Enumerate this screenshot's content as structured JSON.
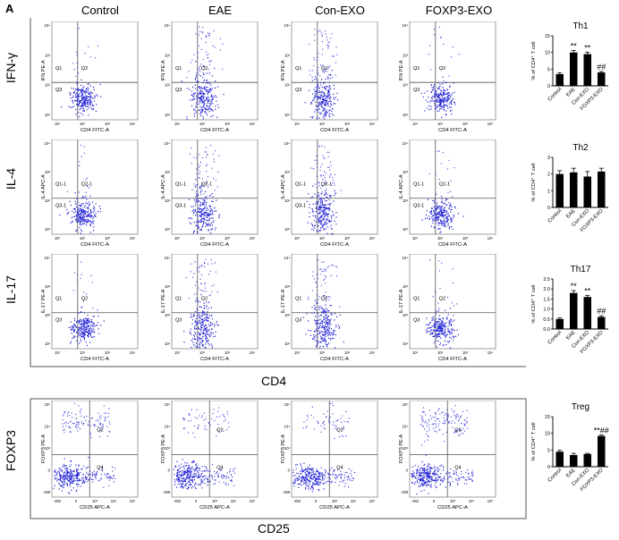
{
  "panel_letter": "A",
  "column_headers": [
    "Control",
    "EAE",
    "Con-EXO",
    "FOXP3-EXO"
  ],
  "row_headers": [
    "IFN-γ",
    "IL-4",
    "IL-17",
    "FOXP3"
  ],
  "bottom_axis_labels": {
    "cd4": "CD4",
    "cd25": "CD25"
  },
  "flow_plots": {
    "rows": [
      {
        "ylabel": "IFN PE-A",
        "xlabel": "CD4 FITC-A",
        "quadrants": [
          "Q1",
          "Q2",
          "Q3"
        ],
        "y_ticks": [
          "10⁴",
          "10³",
          "10²",
          "10¹"
        ],
        "x_ticks": [
          "10¹",
          "10²",
          "10³",
          "10⁴"
        ]
      },
      {
        "ylabel": "IL-4 APC-A",
        "xlabel": "CD4 FITC-A",
        "quadrants": [
          "Q1-1",
          "Q2-1",
          "Q3-1"
        ],
        "y_ticks": [
          "10⁴",
          "10³",
          "10²",
          "10¹"
        ],
        "x_ticks": [
          "10¹",
          "10²",
          "10³",
          "10⁴"
        ]
      },
      {
        "ylabel": "IL-17 PE-A",
        "xlabel": "CD4 FITC-A",
        "quadrants": [
          "Q1",
          "Q2",
          "Q3"
        ],
        "y_ticks": [
          "10⁴",
          "10³",
          "10²",
          "10¹"
        ],
        "x_ticks": [
          "10¹",
          "10²",
          "10³",
          "10⁴"
        ]
      },
      {
        "ylabel": "FOXP3 PE-A",
        "xlabel": "CD25 APC-A",
        "quadrants": [
          "Q2",
          "Q4"
        ],
        "y_ticks": [
          "10⁵",
          "10⁴",
          "10³",
          "0",
          "-188"
        ],
        "x_ticks": [
          "-262",
          "0",
          "10³",
          "10⁴",
          "10⁵"
        ]
      }
    ]
  },
  "chart_data": [
    {
      "type": "bar",
      "title": "Th1",
      "ylabel": "% of CD4⁺ T cell",
      "categories": [
        "Control",
        "EAE",
        "Con-EXO",
        "FOXP3-EXO"
      ],
      "values": [
        3.5,
        10,
        9.5,
        4
      ],
      "errors": [
        0.4,
        0.6,
        0.6,
        0.3
      ],
      "ylim": [
        0,
        15
      ],
      "yticks": [
        0,
        5,
        10,
        15
      ],
      "annotations": [
        "",
        "**",
        "**",
        "##"
      ]
    },
    {
      "type": "bar",
      "title": "Th2",
      "ylabel": "% of CD4⁺ T cell",
      "categories": [
        "Control",
        "EAE",
        "Con-EXO",
        "FOXP3-EXO"
      ],
      "values": [
        2.0,
        2.1,
        1.85,
        2.15
      ],
      "errors": [
        0.2,
        0.25,
        0.3,
        0.2
      ],
      "ylim": [
        0,
        3
      ],
      "yticks": [
        0,
        1,
        2,
        3
      ],
      "annotations": [
        "",
        "",
        "",
        ""
      ]
    },
    {
      "type": "bar",
      "title": "Th17",
      "ylabel": "% of CD4⁺ T cell",
      "categories": [
        "Control",
        "EAE",
        "Con-EXO",
        "FOXP3-EXO"
      ],
      "values": [
        0.5,
        1.8,
        1.6,
        0.6
      ],
      "errors": [
        0.05,
        0.12,
        0.08,
        0.06
      ],
      "ylim": [
        0,
        2.5
      ],
      "yticks": [
        0.0,
        0.5,
        1.0,
        1.5,
        2.0,
        2.5
      ],
      "annotations": [
        "",
        "**",
        "**",
        "##"
      ]
    },
    {
      "type": "bar",
      "title": "Treg",
      "ylabel": "% of CD4⁺ T cell",
      "categories": [
        "Control",
        "EAE",
        "Con-EXO",
        "FOXP3-EXO"
      ],
      "values": [
        4.5,
        3.5,
        3.8,
        9.2
      ],
      "errors": [
        0.4,
        0.5,
        0.2,
        0.3
      ],
      "ylim": [
        0,
        15
      ],
      "yticks": [
        0,
        5,
        10,
        15
      ],
      "annotations": [
        "",
        "",
        "",
        "**##"
      ]
    }
  ]
}
